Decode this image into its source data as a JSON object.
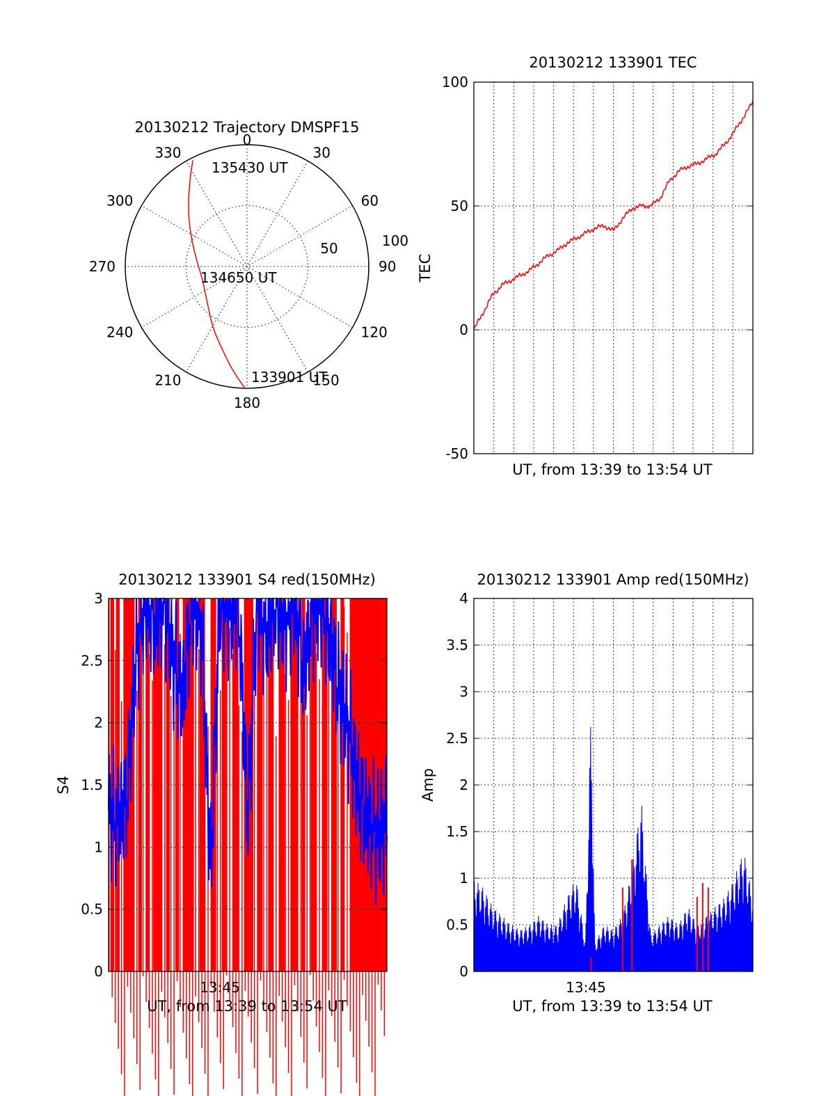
{
  "chart_data": [
    {
      "panel": "polar",
      "type": "polar-trajectory",
      "title": "20130212 Trajectory DMSPF15",
      "angle_ticks": [
        "0",
        "30",
        "60",
        "90",
        "120",
        "150",
        "180",
        "210",
        "240",
        "270",
        "300",
        "330"
      ],
      "radial_ticks": [
        "50",
        "100"
      ],
      "radial_range": [
        0,
        100
      ],
      "grid": true,
      "trajectory": {
        "color": "#ff0000",
        "points": [
          {
            "az": 181,
            "r": 100
          },
          {
            "az": 188,
            "r": 86
          },
          {
            "az": 196,
            "r": 72
          },
          {
            "az": 209,
            "r": 58
          },
          {
            "az": 228,
            "r": 44
          },
          {
            "az": 255,
            "r": 38
          },
          {
            "az": 283,
            "r": 44
          },
          {
            "az": 305,
            "r": 58
          },
          {
            "az": 318,
            "r": 72
          },
          {
            "az": 327,
            "r": 86
          },
          {
            "az": 333,
            "r": 98
          }
        ]
      },
      "annotations": [
        {
          "text": "135430 UT",
          "az": 338,
          "r": 97
        },
        {
          "text": "134650 UT",
          "az": 245,
          "r": 18
        },
        {
          "text": "133901 UT",
          "az": 180,
          "r": 100
        }
      ]
    },
    {
      "panel": "tec",
      "type": "line",
      "title": "20130212 133901 TEC",
      "xlabel": "UT, from 13:39 to 13:54 UT",
      "ylabel": "TEC",
      "xlim": [
        0,
        15
      ],
      "ylim": [
        -50,
        100
      ],
      "yticks": [
        "-50",
        "0",
        "50",
        "100"
      ],
      "grid": true,
      "series": [
        {
          "color": "#ff0000",
          "x": [
            0,
            0.5,
            1,
            1.5,
            2,
            2.5,
            3,
            3.5,
            4,
            4.5,
            5,
            5.5,
            6,
            6.5,
            7,
            7.5,
            8,
            8.5,
            9,
            9.5,
            10,
            10.5,
            11,
            11.5,
            12,
            12.5,
            13,
            13.5,
            14,
            14.5,
            15
          ],
          "y": [
            0,
            7,
            14,
            18,
            20,
            22,
            24,
            27,
            30,
            32,
            35,
            37,
            39,
            41,
            42,
            40,
            45,
            49,
            50,
            50,
            53,
            60,
            64,
            66,
            67,
            69,
            71,
            75,
            80,
            86,
            92
          ]
        }
      ]
    },
    {
      "panel": "s4",
      "type": "area",
      "title": "20130212 133901 S4 red(150MHz)",
      "xlabel": "UT, from 13:39 to 13:54 UT",
      "ylabel": "S4",
      "xticks": [
        "13:45"
      ],
      "xlim": [
        0,
        15
      ],
      "ylim": [
        0,
        3
      ],
      "yticks": [
        "0",
        "0.5",
        "1",
        "1.5",
        "2",
        "2.5",
        "3"
      ],
      "grid": true,
      "series": [
        {
          "color": "#ff0000",
          "fill_bands": [
            [
              0.1,
              0.3
            ],
            [
              0.4,
              0.6
            ],
            [
              0.8,
              1.4
            ],
            [
              1.6,
              1.8
            ],
            [
              2.0,
              2.2
            ],
            [
              2.4,
              2.9
            ],
            [
              3.1,
              3.3
            ],
            [
              3.6,
              3.8
            ],
            [
              4.0,
              4.6
            ],
            [
              4.9,
              5.2
            ],
            [
              5.5,
              5.8
            ],
            [
              6.1,
              6.4
            ],
            [
              6.7,
              7.0
            ],
            [
              7.3,
              7.8
            ],
            [
              8.0,
              8.3
            ],
            [
              8.6,
              8.9
            ],
            [
              9.2,
              9.5
            ],
            [
              9.8,
              10.2
            ],
            [
              10.4,
              10.6
            ],
            [
              10.9,
              11.2
            ],
            [
              11.5,
              11.8
            ],
            [
              12.0,
              12.3
            ],
            [
              12.5,
              12.7
            ],
            [
              13.0,
              15.0
            ]
          ]
        },
        {
          "color": "#0000ff",
          "x": [
            0,
            0.5,
            1,
            1.5,
            2,
            2.5,
            3,
            3.5,
            4,
            4.5,
            5,
            5.5,
            6,
            6.5,
            7,
            7.5,
            8,
            8.5,
            9,
            9.5,
            10,
            10.5,
            11,
            11.5,
            12,
            12.5,
            13,
            13.5,
            14,
            14.5,
            15
          ],
          "y": [
            1.3,
            1.2,
            1.4,
            2.6,
            3.0,
            2.8,
            3.0,
            2.5,
            2.2,
            3.0,
            2.8,
            0.8,
            3.0,
            2.9,
            3.0,
            1.2,
            3.0,
            2.7,
            3.0,
            2.8,
            3.0,
            2.4,
            2.9,
            3.0,
            2.6,
            2.2,
            1.9,
            1.4,
            1.2,
            1.1,
            1.2
          ]
        }
      ]
    },
    {
      "panel": "amp",
      "type": "area",
      "title": "20130212 133901 Amp red(150MHz)",
      "xlabel": "UT, from 13:39 to 13:54 UT",
      "ylabel": "Amp",
      "xticks": [
        "13:45"
      ],
      "xlim": [
        0,
        15
      ],
      "ylim": [
        0,
        4
      ],
      "yticks": [
        "0",
        "0.5",
        "1",
        "1.5",
        "2",
        "2.5",
        "3",
        "3.5",
        "4"
      ],
      "grid": true,
      "series": [
        {
          "color": "#0000ff",
          "x": [
            0,
            0.5,
            1,
            1.5,
            2,
            2.5,
            3,
            3.5,
            4,
            4.5,
            5,
            5.5,
            6,
            6.3,
            6.5,
            7,
            7.5,
            8,
            8.5,
            9,
            9.5,
            10,
            10.5,
            11,
            11.5,
            12,
            12.5,
            13,
            13.5,
            14,
            14.5,
            15
          ],
          "y": [
            1.0,
            0.9,
            0.7,
            0.6,
            0.5,
            0.45,
            0.5,
            0.6,
            0.5,
            0.5,
            0.8,
            1.0,
            0.3,
            2.9,
            0.3,
            0.5,
            0.45,
            0.6,
            1.1,
            1.85,
            0.4,
            0.5,
            0.6,
            0.5,
            0.7,
            0.5,
            0.6,
            0.7,
            0.8,
            1.0,
            1.3,
            0.8
          ]
        },
        {
          "color": "#ff0000",
          "spikes": [
            {
              "x": 6.3,
              "y": 0.15
            },
            {
              "x": 8.0,
              "y": 0.9
            },
            {
              "x": 8.5,
              "y": 1.2
            },
            {
              "x": 12.0,
              "y": 0.8
            },
            {
              "x": 12.3,
              "y": 0.95
            },
            {
              "x": 12.6,
              "y": 0.9
            }
          ]
        }
      ]
    }
  ]
}
